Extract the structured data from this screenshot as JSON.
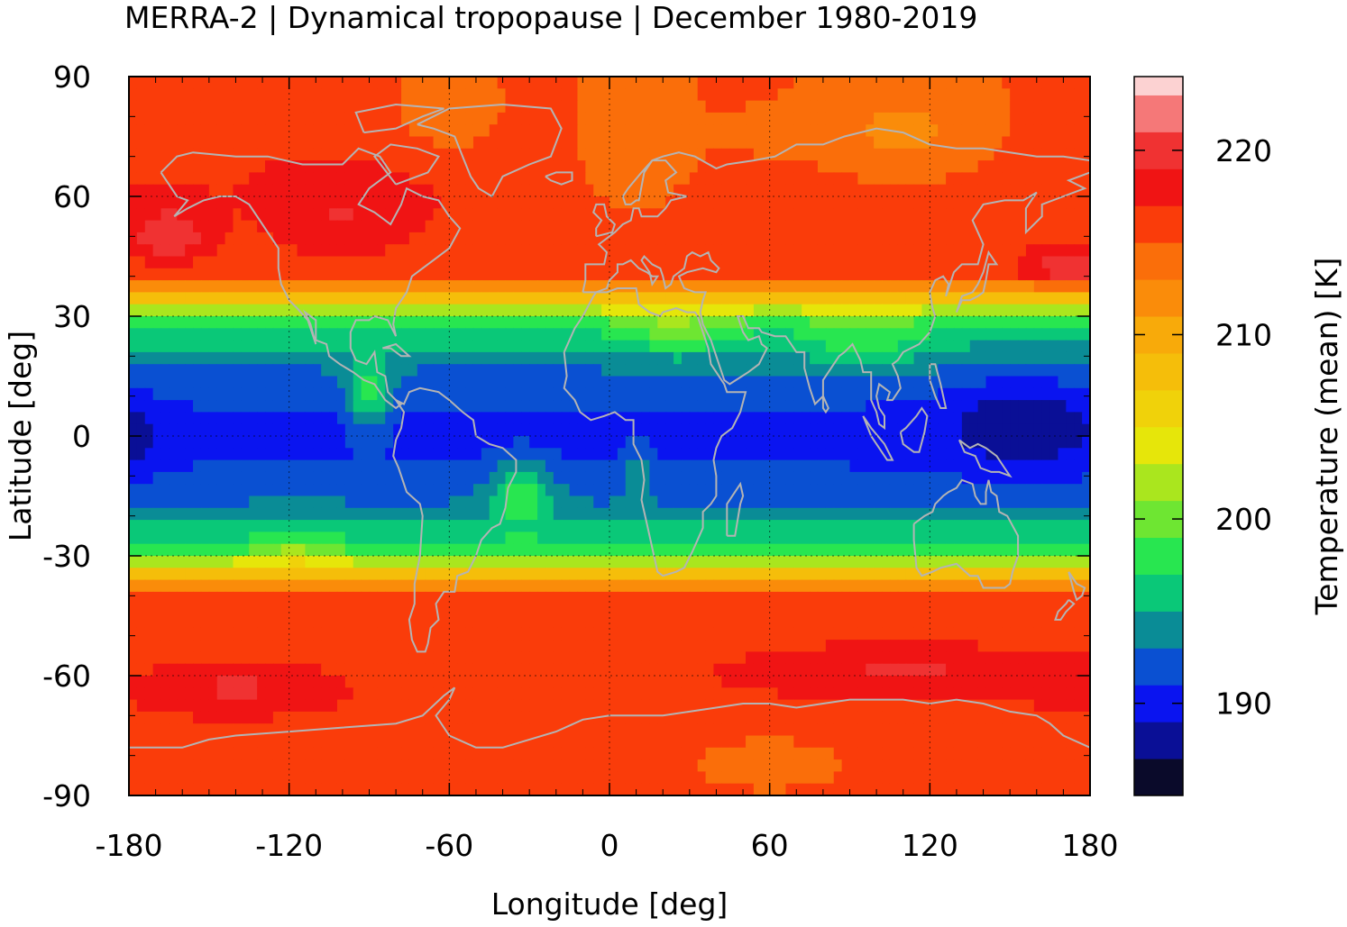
{
  "title": "MERRA-2 | Dynamical tropopause | December 1980-2019",
  "chart_data": {
    "type": "heatmap",
    "projection": "equirectangular",
    "title": "MERRA-2 | Dynamical tropopause | December 1980-2019",
    "xlabel": "Longitude [deg]",
    "ylabel": "Latitude [deg]",
    "xlim": [
      -180,
      180
    ],
    "ylim": [
      -90,
      90
    ],
    "xticks": [
      "-180",
      "-120",
      "-60",
      "0",
      "60",
      "120",
      "180"
    ],
    "yticks": [
      "90",
      "60",
      "30",
      "0",
      "-30",
      "-60",
      "-90"
    ],
    "grid": true,
    "colorbar": {
      "label": "Temperature (mean) [K]",
      "range": [
        185,
        224
      ],
      "ticks": [
        "190",
        "200",
        "210",
        "220"
      ],
      "levels": [
        {
          "min": 185,
          "max": 187,
          "color": "#0a0a2a"
        },
        {
          "min": 187,
          "max": 189,
          "color": "#0a0f96"
        },
        {
          "min": 189,
          "max": 191,
          "color": "#0a14f0"
        },
        {
          "min": 191,
          "max": 193,
          "color": "#0a50d2"
        },
        {
          "min": 193,
          "max": 195,
          "color": "#0a8c96"
        },
        {
          "min": 195,
          "max": 197,
          "color": "#0ac878"
        },
        {
          "min": 197,
          "max": 199,
          "color": "#28e650"
        },
        {
          "min": 199,
          "max": 201,
          "color": "#6ee632"
        },
        {
          "min": 201,
          "max": 203,
          "color": "#aae61e"
        },
        {
          "min": 203,
          "max": 205,
          "color": "#e6e60a"
        },
        {
          "min": 205,
          "max": 207,
          "color": "#f0d20a"
        },
        {
          "min": 207,
          "max": 209,
          "color": "#f5be0a"
        },
        {
          "min": 209,
          "max": 211,
          "color": "#f8aa0a"
        },
        {
          "min": 211,
          "max": 213,
          "color": "#fa8c0a"
        },
        {
          "min": 213,
          "max": 215,
          "color": "#fa6e0a"
        },
        {
          "min": 215,
          "max": 217,
          "color": "#fa3c0a"
        },
        {
          "min": 217,
          "max": 219,
          "color": "#f01414"
        },
        {
          "min": 219,
          "max": 221,
          "color": "#f03232"
        },
        {
          "min": 221,
          "max": 223,
          "color": "#f57878"
        },
        {
          "min": 223,
          "max": 224,
          "color": "#fcd2d2"
        }
      ]
    },
    "coastline_color": "#b4b4b4"
  }
}
